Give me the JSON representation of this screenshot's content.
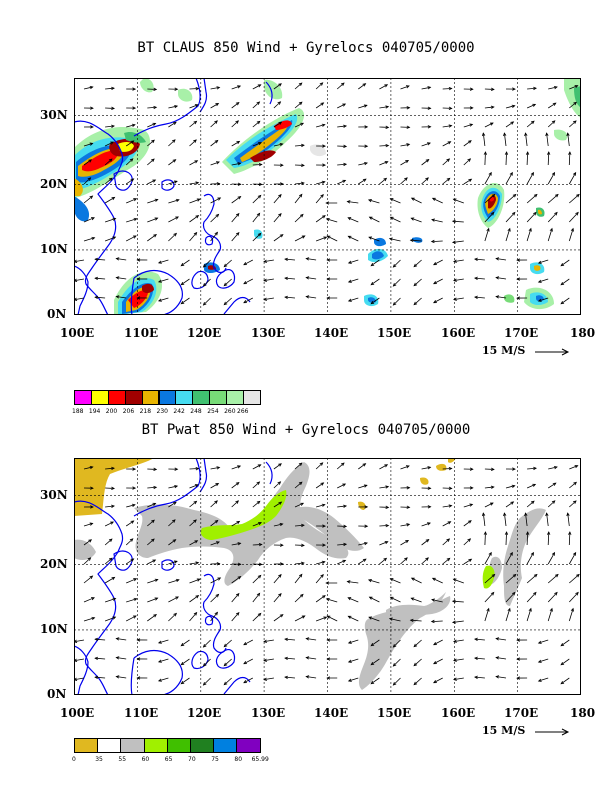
{
  "panels": [
    {
      "title": "BT CLAUS 850 Wind + Gyrelocs 040705/0000",
      "lat_labels": [
        "30N",
        "20N",
        "10N",
        "0N"
      ],
      "lon_labels": [
        "100E",
        "110E",
        "120E",
        "130E",
        "140E",
        "150E",
        "160E",
        "170E",
        "180"
      ],
      "vector_ref": "15 M/S",
      "legend_labels": [
        "188",
        "194",
        "200",
        "206",
        "218",
        "230",
        "242",
        "248",
        "254",
        "260",
        "266"
      ],
      "legend_colors": [
        "#ff00ff",
        "#ffff00",
        "#ff0000",
        "#a00000",
        "#e8b400",
        "#0a78e0",
        "#46dcf0",
        "#40c070",
        "#78dc78",
        "#a8f0a8",
        "#e6e6e6"
      ]
    },
    {
      "title": "BT Pwat 850 Wind + Gyrelocs 040705/0000",
      "lat_labels": [
        "30N",
        "20N",
        "10N",
        "0N"
      ],
      "lon_labels": [
        "100E",
        "110E",
        "120E",
        "130E",
        "140E",
        "150E",
        "160E",
        "170E",
        "180"
      ],
      "vector_ref": "15 M/S",
      "legend_labels": [
        "0",
        "35",
        "55",
        "60",
        "65",
        "70",
        "75",
        "80",
        "65.99"
      ],
      "legend_colors": [
        "#e0b820",
        "#ffffff",
        "#c0c0c0",
        "#a0f000",
        "#40c000",
        "#208020",
        "#0080e0",
        "#8000c0"
      ]
    }
  ]
}
